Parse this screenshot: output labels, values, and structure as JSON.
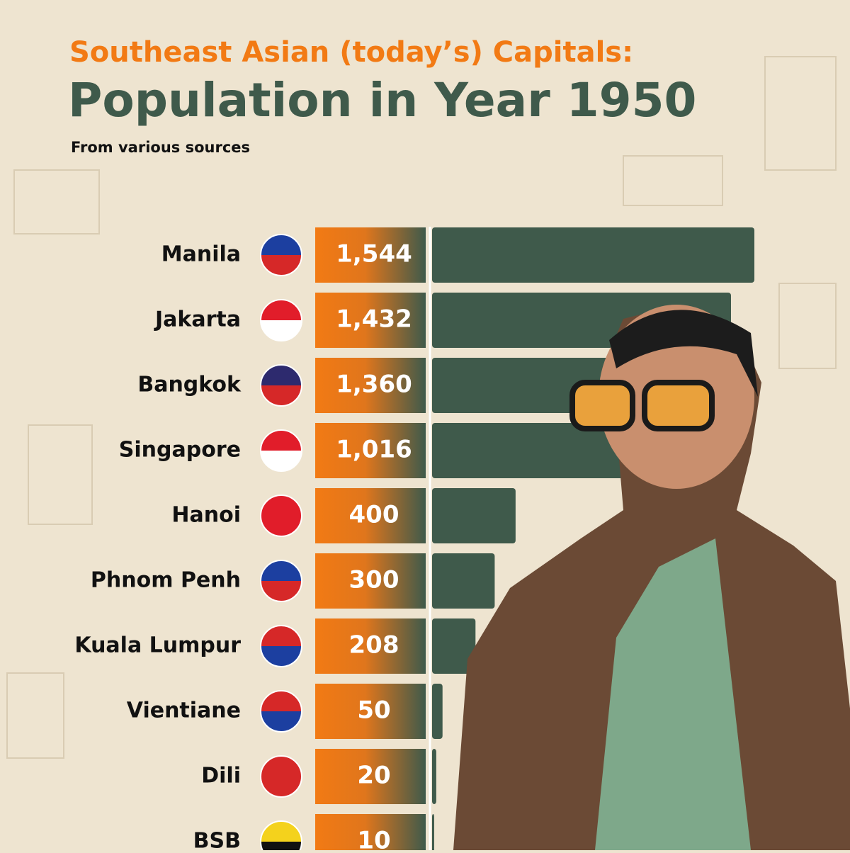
{
  "chart_data": {
    "type": "bar",
    "title": "Southeast Asian (today’s) Capitals:",
    "subtitle": "Population in Year 1950",
    "note": "From various sources",
    "categories": [
      "Manila",
      "Jakarta",
      "Bangkok",
      "Singapore",
      "Hanoi",
      "Phnom Penh",
      "Kuala Lumpur",
      "Vientiane",
      "Dili",
      "BSB"
    ],
    "values": [
      1544,
      1432,
      1360,
      1016,
      400,
      300,
      208,
      50,
      20,
      10
    ],
    "value_labels": [
      "1,544",
      "1,432",
      "1,360",
      "1,016",
      "400",
      "300",
      "208",
      "50",
      "20",
      "10"
    ],
    "color": "#3f5a4b"
  }
}
